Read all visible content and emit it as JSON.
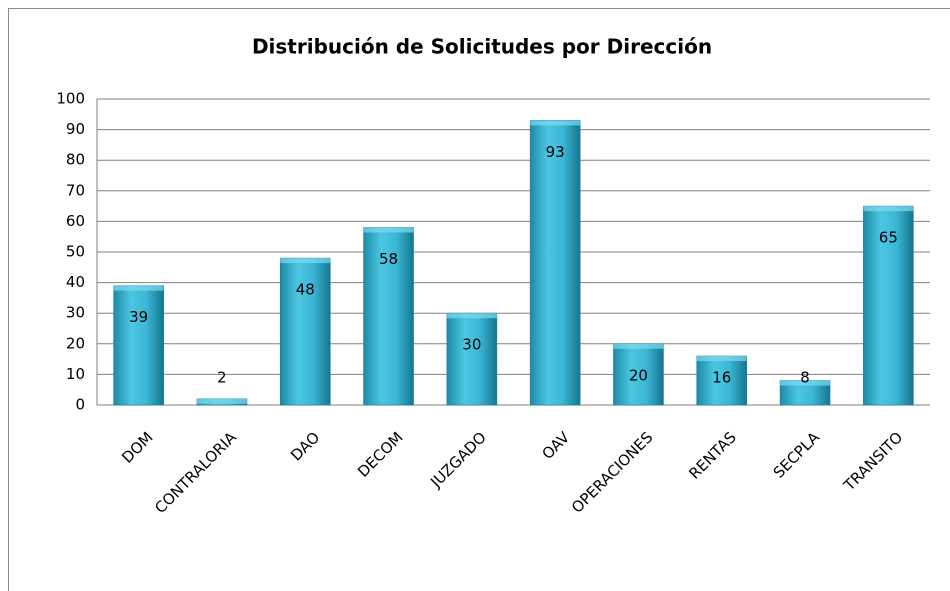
{
  "chart_data": {
    "type": "bar",
    "title": "Distribución de Solicitudes por Dirección",
    "categories": [
      "DOM",
      "CONTRALORIA",
      "DAO",
      "DECOM",
      "JUZGADO",
      "OAV",
      "OPERACIONES",
      "RENTAS",
      "SECPLA",
      "TRANSITO"
    ],
    "values": [
      39,
      2,
      48,
      58,
      30,
      93,
      20,
      16,
      8,
      65
    ],
    "color": "#36b3d1",
    "ylim": [
      0,
      100
    ],
    "yticks": [
      0,
      10,
      20,
      30,
      40,
      50,
      60,
      70,
      80,
      90,
      100
    ],
    "grid": true
  }
}
